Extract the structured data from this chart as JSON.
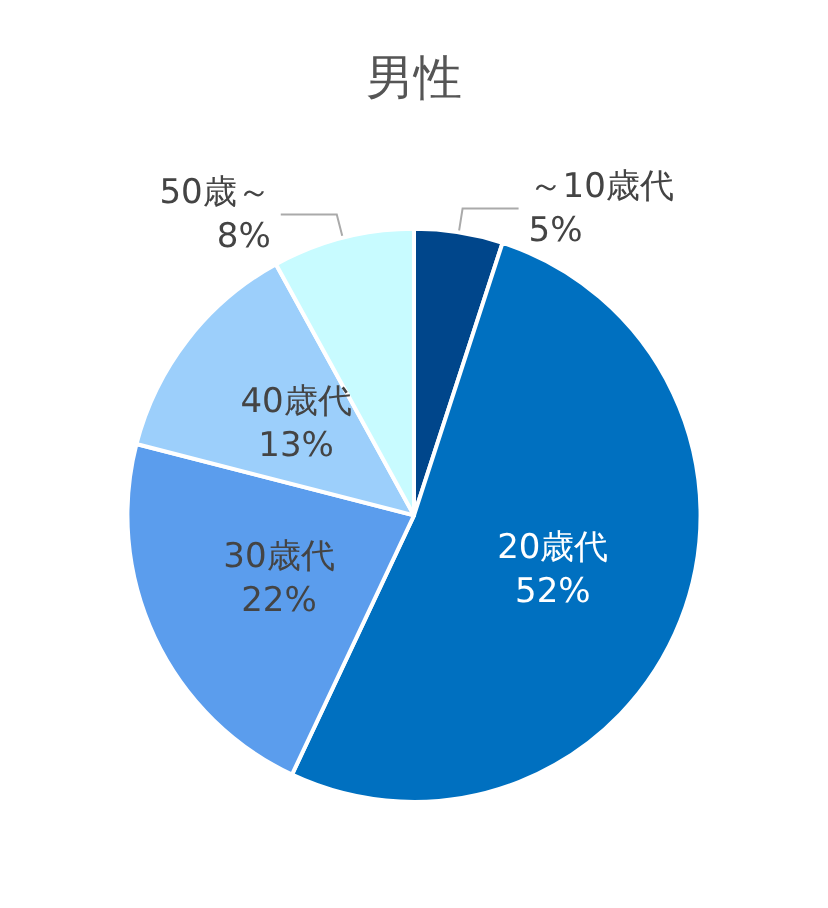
{
  "chart_data": {
    "type": "pie",
    "title": "男性",
    "categories": [
      "～10歳代",
      "20歳代",
      "30歳代",
      "40歳代",
      "50歳～"
    ],
    "values": [
      5,
      52,
      22,
      13,
      8
    ],
    "value_labels": [
      "5%",
      "52%",
      "22%",
      "13%",
      "8%"
    ],
    "colors": [
      "#00468b",
      "#0070c0",
      "#5b9ded",
      "#9ccffb",
      "#c8fbff"
    ],
    "legend": false
  }
}
